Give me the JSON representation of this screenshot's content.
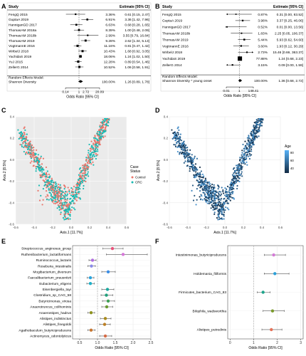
{
  "figure": {
    "panel_letters": [
      "A",
      "B",
      "C",
      "D",
      "E",
      "F"
    ],
    "colors": {
      "control": "#e8766c",
      "crc": "#19b9b1",
      "age_high": "#56b1f7",
      "age_low": "#132b43",
      "forest": "#000000",
      "grid": "#e6e6e6",
      "panel_bg": "#ffffff"
    }
  },
  "chart_data": [
    {
      "panel": "A",
      "type": "table",
      "subtype": "forest-plot",
      "header": {
        "study": "Study",
        "estimate": "Estimate [95% CI]"
      },
      "xlabel": "Odds Ratio [95% CI]",
      "xticks": [
        "0.14",
        "1",
        "2.72",
        "20.09"
      ],
      "xscale": "log",
      "xlim": [
        0.14,
        20.09
      ],
      "null_line": 1,
      "studies": [
        {
          "name": "FengQ 2015",
          "weight": "3.36%",
          "ci_text": "0.61 [0.15, 2.47]",
          "or": 0.61,
          "lo": 0.15,
          "hi": 2.47
        },
        {
          "name": "GuptaA 2019",
          "weight": "6.91%",
          "ci_text": "3.36 [1.42, 7.96]",
          "or": 3.36,
          "lo": 1.42,
          "hi": 7.96
        },
        {
          "name": "HanniganGD 2017",
          "weight": "6.63%",
          "ci_text": "0.68 [0.28, 1.65]",
          "or": 0.68,
          "lo": 0.28,
          "hi": 1.65
        },
        {
          "name": "ThomasAM 2018a",
          "weight": "8.39%",
          "ci_text": "1.00 [0.48, 2.09]",
          "or": 1.0,
          "lo": 0.48,
          "hi": 2.09
        },
        {
          "name": "ThomasAM 2018b",
          "weight": "2.99%",
          "ci_text": "3.55 [0.79, 16.84]",
          "or": 3.55,
          "lo": 0.79,
          "hi": 16.84
        },
        {
          "name": "ThomasAM 2019",
          "weight": "9.28%",
          "ci_text": "2.62 [1.34, 5.13]",
          "or": 2.62,
          "lo": 1.34,
          "hi": 5.13
        },
        {
          "name": "VogtmannE 2016",
          "weight": "11.16%",
          "ci_text": "0.81 [0.47, 1.42]",
          "or": 0.81,
          "lo": 0.47,
          "hi": 1.42
        },
        {
          "name": "WirbelJ 2018",
          "weight": "10.43%",
          "ci_text": "1.68 [0.92, 3.05]",
          "or": 1.68,
          "lo": 0.92,
          "hi": 3.05
        },
        {
          "name": "YachidaS 2019",
          "weight": "18.06%",
          "ci_text": "1.24 [1.02, 1.50]",
          "or": 1.24,
          "lo": 1.02,
          "hi": 1.5
        },
        {
          "name": "YuJ 2015",
          "weight": "12.28%",
          "ci_text": "0.89 [0.54, 1.46]",
          "or": 0.89,
          "lo": 0.54,
          "hi": 1.46
        },
        {
          "name": "ZellerG 2014",
          "weight": "10.52%",
          "ci_text": "1.06 [0.58, 1.91]",
          "or": 1.06,
          "lo": 0.58,
          "hi": 1.91
        }
      ],
      "summary": {
        "line1": "Random Effects Model:",
        "line2": "Shannon Diversity",
        "weight": "100.00%",
        "ci_text": "1.26 [0.89, 1.78]",
        "or": 1.26,
        "lo": 0.89,
        "hi": 1.78
      }
    },
    {
      "panel": "B",
      "type": "table",
      "subtype": "forest-plot",
      "header": {
        "study": "Study",
        "estimate": "Estimate [95% CI]"
      },
      "xlabel": "Odds Ratio [95% CI]",
      "xticks": [
        "0.01",
        "1",
        "148.41"
      ],
      "xscale": "log",
      "xlim": [
        0.01,
        148.41
      ],
      "null_line": 1,
      "studies": [
        {
          "name": "FengQ 2015",
          "weight": "0.87%",
          "ci_text": "0.31 [0.00, 83.52]",
          "or": 0.31,
          "lo": 0.0012,
          "hi": 83.52
        },
        {
          "name": "GuptaA 2019",
          "weight": "3.98%",
          "ci_text": "3.37 [0.25, 46.06]",
          "or": 3.37,
          "lo": 0.25,
          "hi": 46.06
        },
        {
          "name": "HanniganGD 2017",
          "weight": "0.52%",
          "ci_text": "0.01 [0.00, 13.56]",
          "or": 0.01,
          "lo": 0.001,
          "hi": 13.56
        },
        {
          "name": "ThomasAM 2018b",
          "weight": "1.83%",
          "ci_text": "2.25 [0.05, 106.37]",
          "or": 2.25,
          "lo": 0.05,
          "hi": 106.37
        },
        {
          "name": "ThomasAM 2019",
          "weight": "5.44%",
          "ci_text": "5.93 [0.62, 54.60]",
          "or": 5.93,
          "lo": 0.62,
          "hi": 54.6
        },
        {
          "name": "VogtmannE 2016",
          "weight": "3.60%",
          "ci_text": "1.93 [0.12, 30.29]",
          "or": 1.93,
          "lo": 0.12,
          "hi": 30.29
        },
        {
          "name": "WirbelJ 2018",
          "weight": "2.73%",
          "ci_text": "15.46 [0.66, 363.37]",
          "or": 15.46,
          "lo": 0.66,
          "hi": 363.37
        },
        {
          "name": "YachidaS 2019",
          "weight": "77.88%",
          "ci_text": "1.24 [0.68, 2.23]",
          "or": 1.24,
          "lo": 0.68,
          "hi": 2.23
        },
        {
          "name": "ZellerG 2014",
          "weight": "3.15%",
          "ci_text": "0.09 [0.00, 1.59]",
          "or": 0.09,
          "lo": 0.005,
          "hi": 1.59
        }
      ],
      "summary": {
        "line1": "Random Effects Model:",
        "line2": "Shannon Diversity * young onset",
        "weight": "100.00%",
        "ci_text": "1.36 [0.68, 2.72]",
        "or": 1.36,
        "lo": 0.68,
        "hi": 2.72
      }
    },
    {
      "panel": "C",
      "type": "scatter",
      "xlabel": "Axis.1  [11.7%]",
      "ylabel": "Axis.2  [8.5%]",
      "xlim": [
        -0.6,
        0.6
      ],
      "ylim": [
        -0.6,
        0.4
      ],
      "xticks": [
        "-0.6",
        "-0.4",
        "-0.2",
        "0.0",
        "0.2",
        "0.4",
        "0.6"
      ],
      "yticks": [
        "0.4",
        "0.2",
        "0.0",
        "-0.2",
        "-0.4",
        "-0.6"
      ],
      "legend": {
        "title": "Case Status",
        "items": [
          "Control",
          "CRC"
        ],
        "placement": "right"
      },
      "distribution": "V-shaped point cloud; points shown are approximate"
    },
    {
      "panel": "D",
      "type": "scatter",
      "xlabel": "Axis.1  [11.7%]",
      "ylabel": "Axis.2  [8.5%]",
      "xlim": [
        -0.6,
        0.6
      ],
      "ylim": [
        -0.6,
        0.4
      ],
      "xticks": [
        "-0.6",
        "-0.4",
        "-0.2",
        "0.0",
        "0.2",
        "0.4",
        "0.6"
      ],
      "yticks": [
        "0.4",
        "0.2",
        "0.0",
        "-0.2",
        "-0.4",
        "-0.6"
      ],
      "legend": {
        "title": "Age",
        "ticks": [
          "80",
          "60",
          "40"
        ],
        "placement": "right"
      }
    },
    {
      "panel": "E",
      "type": "scatter",
      "subtype": "dot-whisker",
      "xlabel": "Odds Ratio [95% CI]",
      "xlim": [
        0.3,
        2.5
      ],
      "xticks": [
        "0.5",
        "1.0",
        "1.5",
        "2.0",
        "2.5"
      ],
      "null_line": 1,
      "taxa": [
        {
          "name": "Streptococcus_anginosus_group",
          "or": 1.42,
          "lo": 1.15,
          "hi": 1.72,
          "color": "#e9537b"
        },
        {
          "name": "Ruthenibacterium_lactatiformans",
          "or": 1.72,
          "lo": 1.25,
          "hi": 2.4,
          "color": "#d678d8"
        },
        {
          "name": "Ruminococcus_lactaris",
          "or": 0.86,
          "lo": 0.76,
          "hi": 0.96,
          "color": "#b06ee0"
        },
        {
          "name": "Roseburia_intestinalis",
          "or": 0.83,
          "lo": 0.73,
          "hi": 0.94,
          "color": "#8a8be8"
        },
        {
          "name": "Mogibacterium_diversum",
          "or": 1.3,
          "lo": 1.12,
          "hi": 1.5,
          "color": "#3b8ee6"
        },
        {
          "name": "Faecalibacterium_prausnitzii",
          "or": 0.8,
          "lo": 0.71,
          "hi": 0.9,
          "color": "#2aa5e0"
        },
        {
          "name": "Eubacterium_eligens",
          "or": 0.8,
          "lo": 0.7,
          "hi": 0.91,
          "color": "#1eb0c9"
        },
        {
          "name": "Eisenbergiella_tayi",
          "or": 1.28,
          "lo": 1.12,
          "hi": 1.46,
          "color": "#1aa9a0"
        },
        {
          "name": "Clostridium_sp_CAG_58",
          "or": 1.25,
          "lo": 1.1,
          "hi": 1.43,
          "color": "#20a07b"
        },
        {
          "name": "Butyricimonas_virosa",
          "or": 1.3,
          "lo": 1.14,
          "hi": 1.48,
          "color": "#3f9f54"
        },
        {
          "name": "Anaerotruncus_colihominis",
          "or": 1.26,
          "lo": 1.12,
          "hi": 1.43,
          "color": "#6a9a33"
        },
        {
          "name": "Anaerostipes_hadrus",
          "or": 0.82,
          "lo": 0.73,
          "hi": 0.92,
          "color": "#8f9320"
        },
        {
          "name": "Alistipes_indistinctus",
          "or": 1.22,
          "lo": 1.08,
          "hi": 1.38,
          "color": "#a88a1c"
        },
        {
          "name": "Alistipes_finegoldii",
          "or": 1.2,
          "lo": 1.06,
          "hi": 1.36,
          "color": "#bb7f24"
        },
        {
          "name": "Agathobaculum_butyriciproducens",
          "or": 0.82,
          "lo": 0.73,
          "hi": 0.93,
          "color": "#c7752f"
        },
        {
          "name": "Actinomyces_odontolyticus",
          "or": 1.22,
          "lo": 1.06,
          "hi": 1.4,
          "color": "#d56b45"
        }
      ]
    },
    {
      "panel": "F",
      "type": "scatter",
      "subtype": "dot-whisker",
      "xlabel": "Odds Ratio [95% CI]",
      "xlim": [
        -0.1,
        3.1
      ],
      "xticks": [
        "0",
        "1",
        "2",
        "3"
      ],
      "null_line": 1,
      "taxa": [
        {
          "name": "Intestinimonas_butyriciproducens",
          "or": 1.85,
          "lo": 1.45,
          "hi": 2.35,
          "color": "#d37bd6"
        },
        {
          "name": "Holdemania_filiformis",
          "or": 1.9,
          "lo": 1.45,
          "hi": 2.5,
          "color": "#2a9fd8"
        },
        {
          "name": "Firmicutes_bacterium_CAG_83",
          "or": 1.4,
          "lo": 1.15,
          "hi": 1.7,
          "color": "#1fa58c"
        },
        {
          "name": "Bilophila_wadsworthia",
          "or": 1.8,
          "lo": 1.4,
          "hi": 2.3,
          "color": "#7a9a2b"
        },
        {
          "name": "Alistipes_putredinis",
          "or": 1.75,
          "lo": 1.35,
          "hi": 2.2,
          "color": "#e57157"
        }
      ]
    }
  ]
}
